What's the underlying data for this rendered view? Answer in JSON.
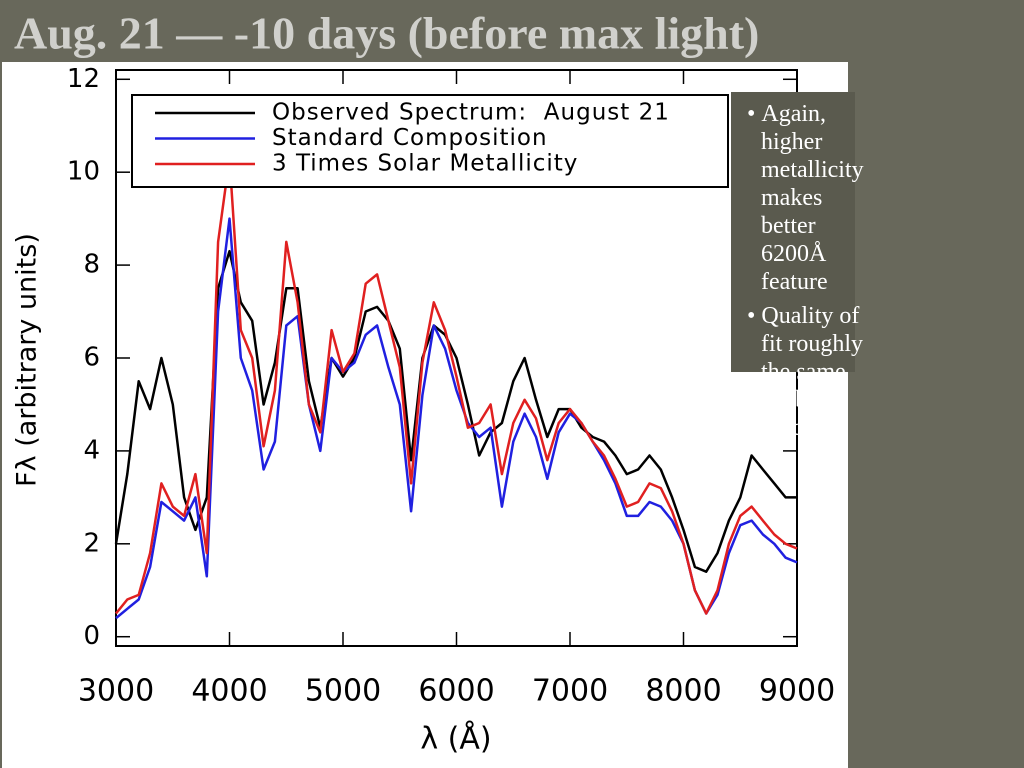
{
  "slide": {
    "title": "Aug. 21 — -10 days (before max light)",
    "notes": [
      "Again, higher metallicity makes better 6200Å feature",
      "Quality of fit roughly the same for both models"
    ]
  },
  "chart_data": {
    "type": "line",
    "xlabel": "λ (Å)",
    "ylabel": "Fλ (arbitrary units)",
    "x": [
      3000,
      3100,
      3200,
      3300,
      3400,
      3500,
      3600,
      3700,
      3800,
      3900,
      4000,
      4100,
      4200,
      4300,
      4400,
      4500,
      4600,
      4700,
      4800,
      4900,
      5000,
      5100,
      5200,
      5300,
      5400,
      5500,
      5600,
      5700,
      5800,
      5900,
      6000,
      6100,
      6200,
      6300,
      6400,
      6500,
      6600,
      6700,
      6800,
      6900,
      7000,
      7100,
      7200,
      7300,
      7400,
      7500,
      7600,
      7700,
      7800,
      7900,
      8000,
      8100,
      8200,
      8300,
      8400,
      8500,
      8600,
      8700,
      8800,
      8900,
      9000
    ],
    "series": [
      {
        "name": "Observed Spectrum:  August 21",
        "color": "#000000",
        "values": [
          2.0,
          3.5,
          5.5,
          4.9,
          6.0,
          5.0,
          3.0,
          2.3,
          3.0,
          7.5,
          8.3,
          7.2,
          6.8,
          5.0,
          5.9,
          7.5,
          7.5,
          5.5,
          4.5,
          6.0,
          5.6,
          6.0,
          7.0,
          7.1,
          6.8,
          6.2,
          3.8,
          6.0,
          6.7,
          6.5,
          6.0,
          5.0,
          3.9,
          4.4,
          4.6,
          5.5,
          6.0,
          5.1,
          4.3,
          4.9,
          4.9,
          4.5,
          4.3,
          4.2,
          3.9,
          3.5,
          3.6,
          3.9,
          3.6,
          3.0,
          2.3,
          1.5,
          1.4,
          1.8,
          2.5,
          3.0,
          3.9,
          3.6,
          3.3,
          3.0,
          3.0
        ]
      },
      {
        "name": "Standard Composition",
        "color": "#2020e0",
        "values": [
          0.4,
          0.6,
          0.8,
          1.5,
          2.9,
          2.7,
          2.5,
          3.0,
          1.3,
          7.0,
          9.0,
          6.0,
          5.3,
          3.6,
          4.2,
          6.7,
          6.9,
          5.0,
          4.0,
          6.0,
          5.7,
          5.9,
          6.5,
          6.7,
          5.8,
          5.0,
          2.7,
          5.2,
          6.7,
          6.2,
          5.3,
          4.6,
          4.3,
          4.5,
          2.8,
          4.2,
          4.8,
          4.3,
          3.4,
          4.4,
          4.8,
          4.6,
          4.2,
          3.8,
          3.3,
          2.6,
          2.6,
          2.9,
          2.8,
          2.5,
          2.0,
          1.0,
          0.5,
          0.9,
          1.8,
          2.4,
          2.5,
          2.2,
          2.0,
          1.7,
          1.6
        ]
      },
      {
        "name": "3 Times Solar Metallicity",
        "color": "#e02020",
        "values": [
          0.5,
          0.8,
          0.9,
          1.8,
          3.3,
          2.8,
          2.6,
          3.5,
          1.8,
          8.5,
          10.3,
          6.6,
          6.0,
          4.1,
          5.3,
          8.5,
          7.2,
          5.0,
          4.4,
          6.6,
          5.7,
          6.1,
          7.6,
          7.8,
          6.8,
          5.8,
          3.3,
          5.9,
          7.2,
          6.6,
          5.6,
          4.5,
          4.6,
          5.0,
          3.5,
          4.6,
          5.1,
          4.7,
          3.8,
          4.6,
          4.9,
          4.6,
          4.2,
          3.9,
          3.4,
          2.8,
          2.9,
          3.3,
          3.2,
          2.7,
          2.0,
          1.0,
          0.5,
          1.0,
          2.0,
          2.6,
          2.8,
          2.5,
          2.2,
          2.0,
          1.9
        ]
      }
    ],
    "xlim": [
      3000,
      9000
    ],
    "xticks": [
      3000,
      4000,
      5000,
      6000,
      7000,
      8000,
      9000
    ],
    "ylim": [
      -0.2,
      12.2
    ],
    "yticks": [
      0,
      2,
      4,
      6,
      8,
      10,
      12
    ],
    "legend": "upper left"
  }
}
